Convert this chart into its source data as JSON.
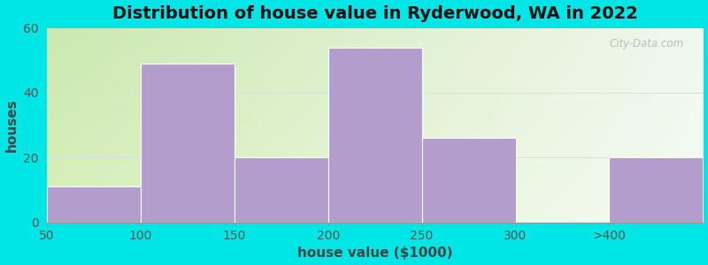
{
  "title": "Distribution of house value in Ryderwood, WA in 2022",
  "xlabel": "house value ($1000)",
  "ylabel": "houses",
  "bar_labels": [
    "50",
    "100",
    "150",
    "200",
    "250",
    "300",
    ">400"
  ],
  "bar_values": [
    11,
    49,
    20,
    54,
    26,
    0,
    20
  ],
  "bar_color": "#b39dcc",
  "ylim": [
    0,
    60
  ],
  "yticks": [
    0,
    20,
    40,
    60
  ],
  "bg_color_topleft": "#cce8b0",
  "bg_color_topright": "#f0f8ee",
  "bg_color_bottomleft": "#d8f0bc",
  "bg_color_bottomright": "#f5fbf5",
  "outer_bg": "#00e5e5",
  "title_fontsize": 14,
  "axis_label_fontsize": 11,
  "tick_fontsize": 10,
  "watermark_text": "City-Data.com",
  "gridline_color": "#dddddd",
  "gridline_y": [
    20,
    40
  ]
}
